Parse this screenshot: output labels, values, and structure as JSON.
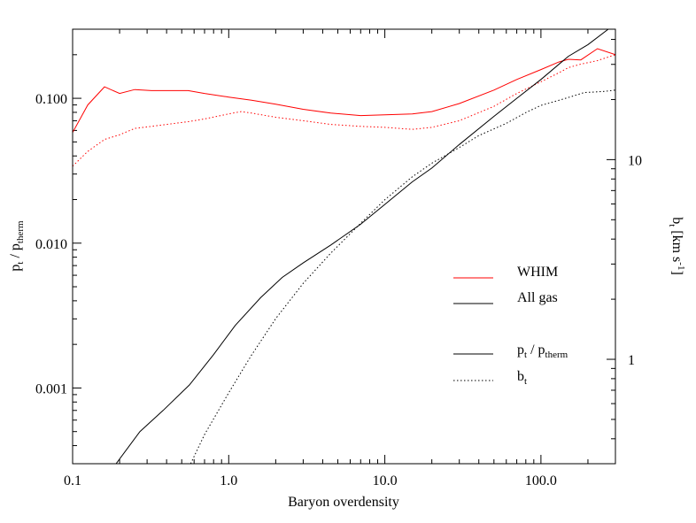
{
  "chart_data": {
    "type": "line",
    "title": "",
    "xlabel": "Baryon overdensity",
    "ylabel_left": {
      "base": "p",
      "sub1": "t",
      "sep": " / p",
      "sub2": "therm"
    },
    "ylabel_right": {
      "base": "b",
      "sub": "t",
      "rest": " [km s",
      "sup": "-1",
      "close": "]"
    },
    "x_scale": "log",
    "xlim": [
      0.1,
      300
    ],
    "y_left_scale": "log",
    "y_left_lim": [
      0.0003,
      0.3
    ],
    "y_right_scale": "log",
    "y_right_lim": [
      0.3,
      45
    ],
    "x_ticks": [
      {
        "v": 0.1,
        "label": "0.1"
      },
      {
        "v": 1,
        "label": "1.0"
      },
      {
        "v": 10,
        "label": "10.0"
      },
      {
        "v": 100,
        "label": "100.0"
      }
    ],
    "y_left_ticks": [
      {
        "v": 0.001,
        "label": "0.001"
      },
      {
        "v": 0.01,
        "label": "0.010"
      },
      {
        "v": 0.1,
        "label": "0.100"
      }
    ],
    "y_right_ticks": [
      {
        "v": 1,
        "label": "1"
      },
      {
        "v": 10,
        "label": "10"
      }
    ],
    "grid": false,
    "legend": {
      "placement": "center-right",
      "entries": [
        {
          "text": "WHIM",
          "color": "#ff0000",
          "style": "solid"
        },
        {
          "text": "All gas",
          "color": "#000000",
          "style": "solid"
        }
      ],
      "style_entries": [
        {
          "style": "solid",
          "base": "p",
          "sub1": "t",
          "sep": " / p",
          "sub2": "therm"
        },
        {
          "style": "dotted",
          "base": "b",
          "sub1": "t"
        }
      ]
    },
    "series": [
      {
        "group": "WHIM",
        "quantity": "pt/ptherm",
        "axis": "left",
        "color": "#ff0000",
        "style": "solid",
        "x": [
          0.1,
          0.125,
          0.16,
          0.2,
          0.25,
          0.32,
          0.4,
          0.55,
          0.7,
          1.0,
          1.4,
          2.0,
          3.0,
          4.5,
          7.0,
          10,
          15,
          20,
          30,
          50,
          70,
          100,
          130,
          150,
          180,
          230,
          300
        ],
        "y": [
          0.058,
          0.09,
          0.12,
          0.108,
          0.115,
          0.113,
          0.113,
          0.113,
          0.108,
          0.102,
          0.097,
          0.091,
          0.084,
          0.079,
          0.076,
          0.077,
          0.078,
          0.081,
          0.092,
          0.114,
          0.135,
          0.158,
          0.178,
          0.186,
          0.184,
          0.22,
          0.2
        ]
      },
      {
        "group": "WHIM",
        "quantity": "bt",
        "axis": "left",
        "color": "#ff0000",
        "style": "dotted",
        "x": [
          0.1,
          0.125,
          0.16,
          0.2,
          0.25,
          0.32,
          0.4,
          0.55,
          0.7,
          1.0,
          1.2,
          1.4,
          2.0,
          3.0,
          4.5,
          7.0,
          10,
          15,
          20,
          30,
          50,
          70,
          100,
          130,
          150,
          180,
          230,
          300
        ],
        "y": [
          0.034,
          0.043,
          0.052,
          0.056,
          0.062,
          0.064,
          0.066,
          0.069,
          0.072,
          0.078,
          0.081,
          0.079,
          0.074,
          0.07,
          0.066,
          0.064,
          0.063,
          0.061,
          0.063,
          0.07,
          0.088,
          0.108,
          0.13,
          0.15,
          0.163,
          0.172,
          0.182,
          0.2
        ]
      },
      {
        "group": "All gas",
        "quantity": "pt/ptherm",
        "axis": "left",
        "color": "#000000",
        "style": "solid",
        "x": [
          0.19,
          0.27,
          0.38,
          0.56,
          0.8,
          1.1,
          1.6,
          2.2,
          3.0,
          4.5,
          7.0,
          10,
          15,
          20,
          30,
          50,
          70,
          100,
          150,
          200,
          270
        ],
        "y": [
          0.0003,
          0.0005,
          0.0007,
          0.00105,
          0.0017,
          0.0027,
          0.0042,
          0.0058,
          0.0073,
          0.0097,
          0.0135,
          0.0185,
          0.0265,
          0.033,
          0.048,
          0.075,
          0.1,
          0.135,
          0.195,
          0.235,
          0.3
        ]
      },
      {
        "group": "All gas",
        "quantity": "bt",
        "axis": "right",
        "color": "#000000",
        "style": "dotted",
        "x": [
          0.57,
          0.7,
          1.0,
          1.4,
          2.0,
          3.0,
          4.5,
          7.0,
          10,
          15,
          20,
          30,
          40,
          60,
          80,
          100,
          130,
          160,
          190,
          220,
          260,
          300
        ],
        "y": [
          0.3,
          0.42,
          0.68,
          1.05,
          1.6,
          2.4,
          3.4,
          4.8,
          6.3,
          8.2,
          9.6,
          11.5,
          13.2,
          15.2,
          17.2,
          18.7,
          19.8,
          20.8,
          21.7,
          21.8,
          22.0,
          22.3
        ]
      }
    ]
  }
}
